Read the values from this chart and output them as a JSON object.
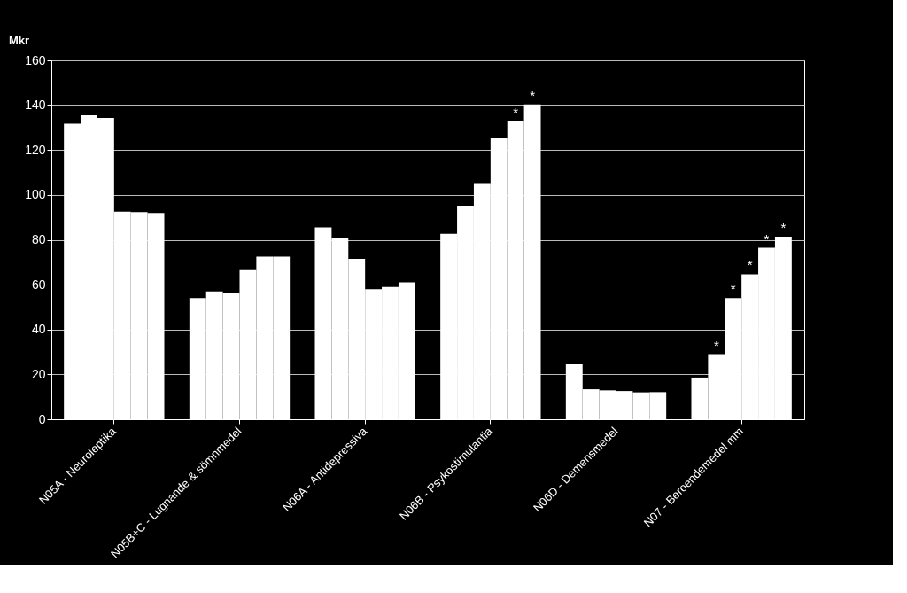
{
  "chart_data": {
    "type": "bar",
    "ylabel": "Mkr",
    "categories": [
      "N05A - Neuroleptika",
      "N05B+C - Lugnande & sömnmedel",
      "N06A - Antidepressiva",
      "N06B - Psykostimulantia",
      "N06D - Demensmedel",
      "N07 - Beroendemedel mm"
    ],
    "series": [
      {
        "color": "#ffffff",
        "values": [
          131.8,
          54,
          85.5,
          82.7,
          24.5,
          18.6
        ]
      },
      {
        "color": "#ffffff",
        "values": [
          135.5,
          57,
          81,
          95.2,
          13.4,
          29
        ],
        "value_labels": [
          null,
          null,
          null,
          null,
          null,
          "*"
        ]
      },
      {
        "color": "#ffffff",
        "values": [
          134.3,
          56.5,
          71.5,
          104.9,
          12.9,
          54
        ],
        "value_labels": [
          null,
          null,
          null,
          null,
          null,
          "*"
        ]
      },
      {
        "color": "#ffffff",
        "values": [
          92.5,
          66.5,
          58,
          125.2,
          12.6,
          64.6
        ],
        "value_labels": [
          null,
          null,
          null,
          null,
          null,
          "*"
        ]
      },
      {
        "color": "#ffffff",
        "values": [
          92.3,
          72.5,
          59,
          132.8,
          12,
          76.4
        ],
        "value_labels": [
          null,
          null,
          null,
          "*",
          null,
          "*"
        ]
      },
      {
        "color": "#ffffff",
        "values": [
          92,
          72.5,
          61,
          140.3,
          12.1,
          81.4
        ],
        "value_labels": [
          null,
          null,
          null,
          "*",
          null,
          "*"
        ]
      }
    ],
    "ylim": [
      0,
      160
    ],
    "yticks": [
      0,
      20,
      40,
      60,
      80,
      100,
      120,
      140,
      160
    ],
    "grid": "y"
  }
}
